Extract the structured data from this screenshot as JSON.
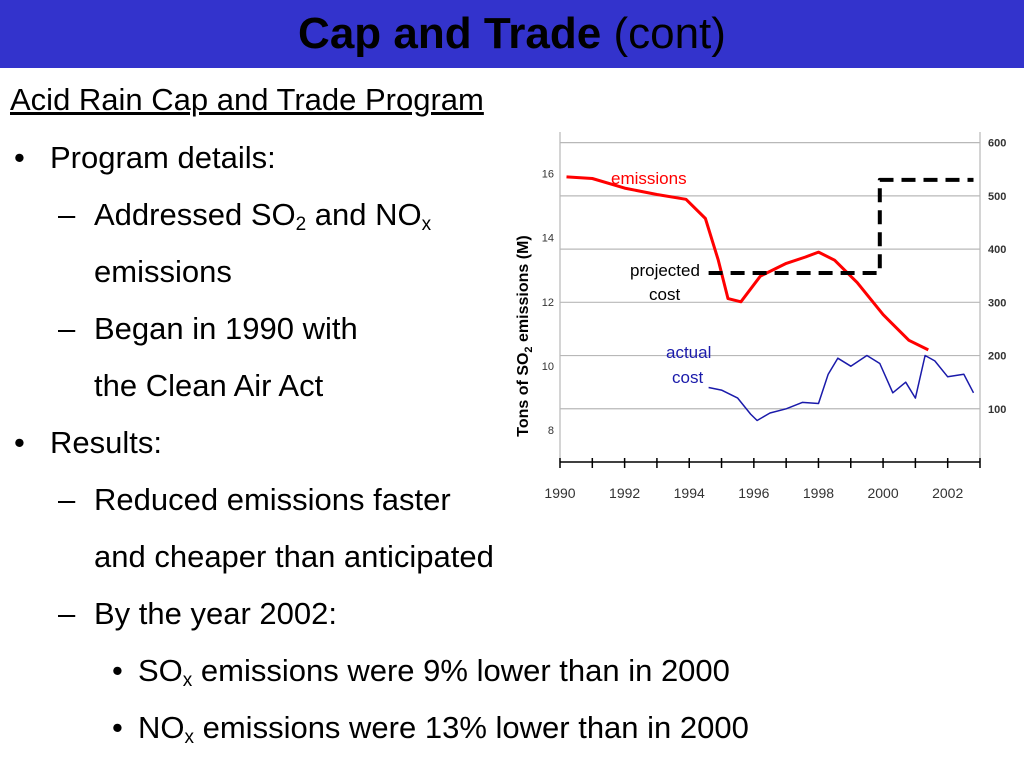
{
  "slide": {
    "title_bold": "Cap and Trade",
    "title_rest": " (cont)",
    "subtitle": "Acid Rain Cap and Trade Program",
    "bullet_marker": "•",
    "dash_marker": "–",
    "items": {
      "details": "Program details:",
      "addressed_a": "Addressed SO",
      "addressed_sub1": "2",
      "addressed_b": " and NO",
      "addressed_sub2": "x",
      "addressed_c": "emissions",
      "began_a": "Began in 1990 with",
      "began_b": "the Clean Air Act",
      "results": "Results:",
      "reduced_a": "Reduced emissions faster",
      "reduced_b": "and cheaper than anticipated",
      "byyear": "By the year 2002:",
      "sox_a": "SO",
      "sox_sub": "x",
      "sox_b": " emissions were 9% lower than in 2000",
      "nox_a": "NO",
      "nox_sub": "x",
      "nox_b": " emissions were 13% lower than in 2000"
    }
  },
  "chart_data": {
    "type": "line",
    "ylabel_a": "Tons of SO",
    "ylabel_sub": "2",
    "ylabel_b": " emissions (M)",
    "xlim": [
      1990,
      2003
    ],
    "ylim_left": [
      7,
      17.3
    ],
    "ylim_right": [
      0,
      620
    ],
    "x_ticks": [
      1990,
      1992,
      1994,
      1996,
      1998,
      2000,
      2002
    ],
    "y_ticks_left": [
      8,
      10,
      12,
      14,
      16
    ],
    "y_ticks_right": [
      100,
      200,
      300,
      400,
      500,
      600
    ],
    "grid": true,
    "colors": {
      "emissions": "#ff0000",
      "projected": "#000000",
      "actual": "#1a1aaa"
    },
    "annotations": {
      "emissions": "emissions",
      "projected_1": "projected",
      "projected_2": "cost",
      "actual_1": "actual",
      "actual_2": "cost"
    },
    "series": [
      {
        "name": "emissions",
        "axis": "left",
        "x": [
          1990.2,
          1991,
          1992,
          1993,
          1993.9,
          1994.5,
          1994.9,
          1995.2,
          1995.6,
          1996.2,
          1997,
          1997.6,
          1998,
          1998.5,
          1999.2,
          2000,
          2000.8,
          2001.4
        ],
        "y": [
          15.9,
          15.85,
          15.55,
          15.35,
          15.2,
          14.6,
          13.3,
          12.1,
          12.0,
          12.8,
          13.2,
          13.4,
          13.55,
          13.3,
          12.6,
          11.6,
          10.8,
          10.5
        ]
      },
      {
        "name": "projected cost",
        "axis": "right",
        "x": [
          1994.6,
          1999.9,
          1999.9,
          2002.8
        ],
        "y": [
          355,
          355,
          530,
          530
        ]
      },
      {
        "name": "actual cost",
        "axis": "right",
        "x": [
          1994.6,
          1995,
          1995.5,
          1995.9,
          1996.1,
          1996.5,
          1997,
          1997.5,
          1998,
          1998.3,
          1998.6,
          1999,
          1999.5,
          1999.9,
          2000.3,
          2000.7,
          2001,
          2001.3,
          2001.6,
          2002,
          2002.5,
          2002.8
        ],
        "y": [
          140,
          135,
          120,
          90,
          78,
          92,
          100,
          112,
          110,
          165,
          195,
          180,
          200,
          185,
          130,
          150,
          120,
          200,
          190,
          160,
          165,
          130
        ]
      }
    ]
  }
}
